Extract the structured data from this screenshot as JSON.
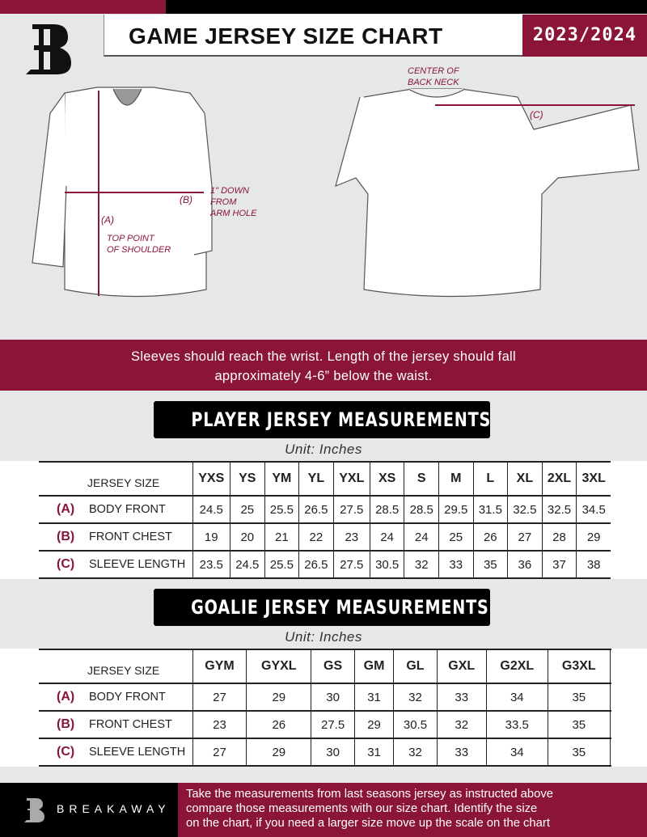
{
  "header": {
    "title": "GAME JERSEY SIZE CHART",
    "season": "2023/2024",
    "logo_text": "B"
  },
  "diagram": {
    "label_a": "(A)",
    "label_b": "(B)",
    "label_c": "(C)",
    "top_point": [
      "TOP POINT",
      "OF SHOULDER"
    ],
    "down_from": [
      "1\" DOWN",
      "FROM",
      "ARM HOLE"
    ],
    "center_back": [
      "CENTER OF",
      "BACK NECK"
    ]
  },
  "note": [
    "Sleeves should reach the wrist. Length of the jersey should fall",
    "approximately 4-6” below the waist."
  ],
  "player": {
    "title": "PLAYER JERSEY MEASUREMENTS",
    "unit": "Unit: Inches",
    "header": "JERSEY SIZE",
    "sizes": [
      "YXS",
      "YS",
      "YM",
      "YL",
      "YXL",
      "XS",
      "S",
      "M",
      "L",
      "XL",
      "2XL",
      "3XL"
    ],
    "rows": [
      {
        "key": "(A)",
        "label": "BODY FRONT",
        "values": [
          "24.5",
          "25",
          "25.5",
          "26.5",
          "27.5",
          "28.5",
          "28.5",
          "29.5",
          "31.5",
          "32.5",
          "32.5",
          "34.5"
        ]
      },
      {
        "key": "(B)",
        "label": "FRONT CHEST",
        "values": [
          "19",
          "20",
          "21",
          "22",
          "23",
          "24",
          "24",
          "25",
          "26",
          "27",
          "28",
          "29"
        ]
      },
      {
        "key": "(C)",
        "label": "SLEEVE LENGTH",
        "values": [
          "23.5",
          "24.5",
          "25.5",
          "26.5",
          "27.5",
          "30.5",
          "32",
          "33",
          "35",
          "36",
          "37",
          "38"
        ]
      }
    ]
  },
  "goalie": {
    "title": "GOALIE JERSEY MEASUREMENTS",
    "unit": "Unit: Inches",
    "header": "JERSEY SIZE",
    "sizes": [
      "GYM",
      "GYXL",
      "GS",
      "GM",
      "GL",
      "GXL",
      "G2XL",
      "G3XL",
      ""
    ],
    "rows": [
      {
        "key": "(A)",
        "label": "BODY FRONT",
        "values": [
          "27",
          "29",
          "30",
          "31",
          "32",
          "33",
          "34",
          "35",
          ""
        ]
      },
      {
        "key": "(B)",
        "label": "FRONT CHEST",
        "values": [
          "23",
          "26",
          "27.5",
          "29",
          "30.5",
          "32",
          "33.5",
          "35",
          ""
        ]
      },
      {
        "key": "(C)",
        "label": "SLEEVE LENGTH",
        "values": [
          "27",
          "29",
          "30",
          "31",
          "32",
          "33",
          "34",
          "35",
          ""
        ]
      }
    ]
  },
  "footer": {
    "brand": "BREAKAWAY",
    "text": [
      "Take the measurements from last seasons jersey as instructed above",
      "compare those measurements  with our size chart. Identify the size",
      "on the chart, if you need a larger size move up the scale on the chart"
    ]
  },
  "colors": {
    "accent": "#8a1538",
    "dark": "#000000",
    "background": "#e6e7e8"
  }
}
